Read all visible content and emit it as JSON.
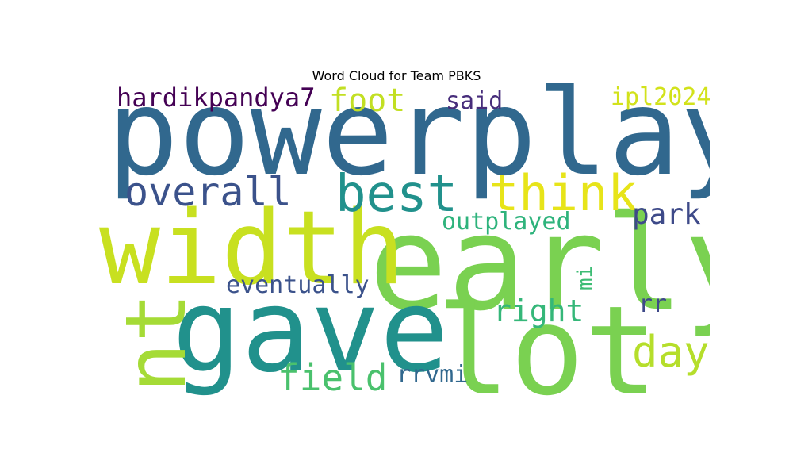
{
  "title": "Word Cloud for Team PBKS",
  "words": [
    {
      "text": "powerplay",
      "color": "#31688e"
    },
    {
      "text": "early",
      "color": "#7ad151"
    },
    {
      "text": "width",
      "color": "#c8e020"
    },
    {
      "text": "gave",
      "color": "#21918c"
    },
    {
      "text": "lot",
      "color": "#7ad151"
    },
    {
      "text": "nt",
      "color": "#a5db36"
    },
    {
      "text": "best",
      "color": "#21918c"
    },
    {
      "text": "think",
      "color": "#e7e419"
    },
    {
      "text": "overall",
      "color": "#3b528b"
    },
    {
      "text": "hardikpandya7",
      "color": "#440154"
    },
    {
      "text": "foot",
      "color": "#c2df23"
    },
    {
      "text": "said",
      "color": "#472d7b"
    },
    {
      "text": "ipl2024",
      "color": "#d2e21b"
    },
    {
      "text": "park",
      "color": "#3e4a89"
    },
    {
      "text": "outplayed",
      "color": "#2eb37c"
    },
    {
      "text": "mi",
      "color": "#3dbc74"
    },
    {
      "text": "eventually",
      "color": "#3b528b"
    },
    {
      "text": "right",
      "color": "#35b779"
    },
    {
      "text": "rr",
      "color": "#3e4989"
    },
    {
      "text": "day",
      "color": "#b5de2b"
    },
    {
      "text": "field",
      "color": "#4ac16d"
    },
    {
      "text": "rrvmi",
      "color": "#31688e"
    }
  ]
}
